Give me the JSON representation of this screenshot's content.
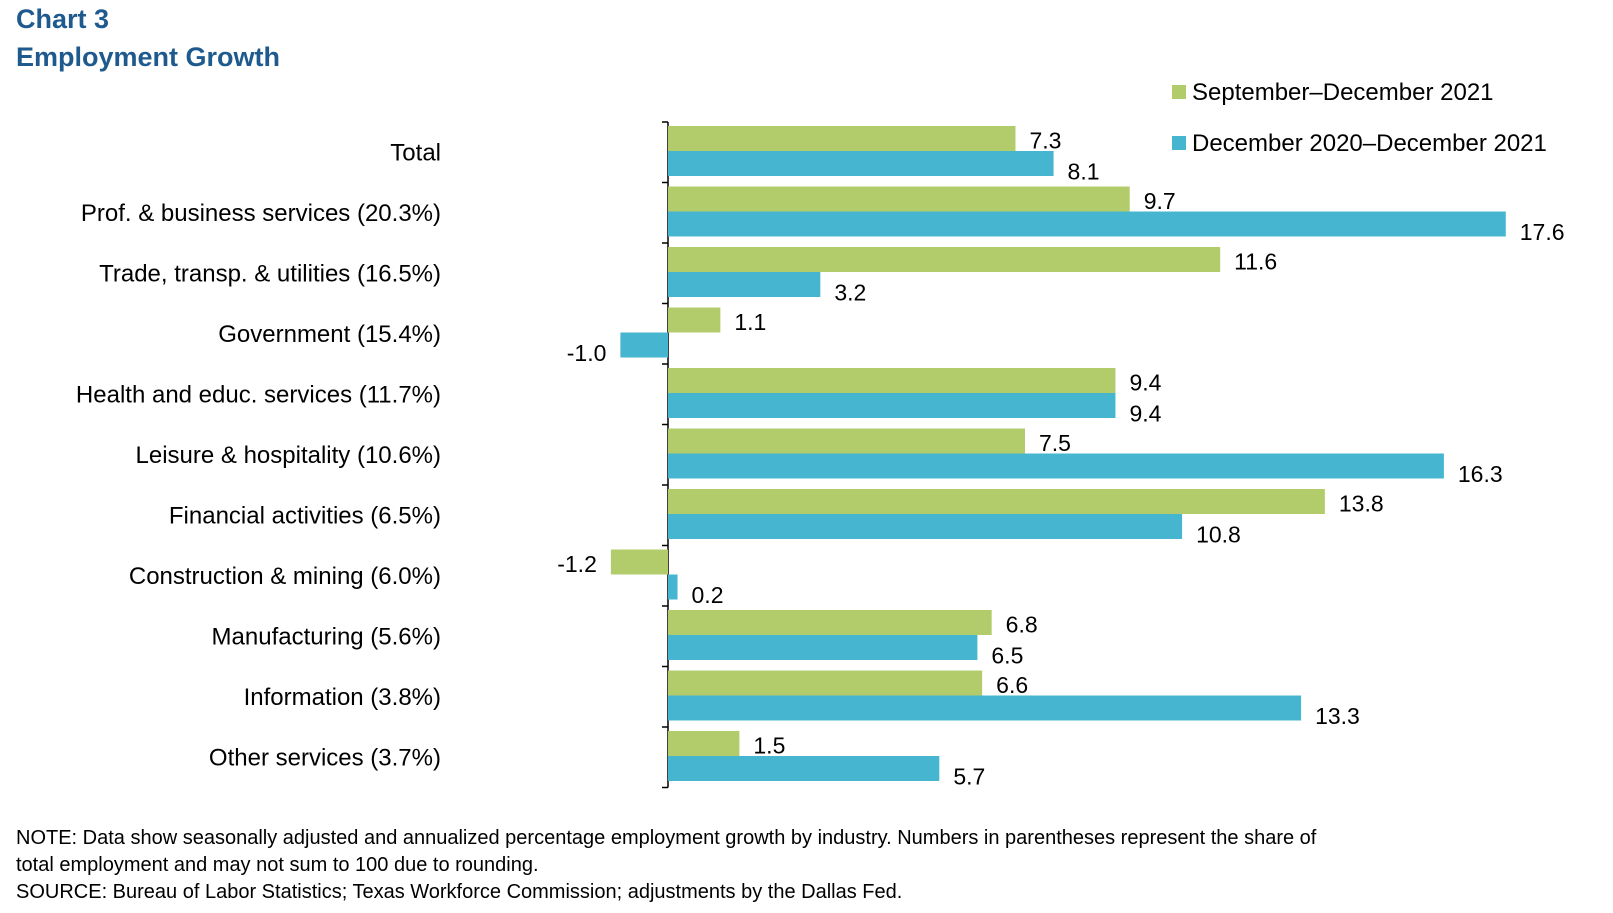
{
  "header": {
    "label": "Chart 3",
    "title": "Employment Growth"
  },
  "notes": {
    "note_line1": "NOTE: Data show seasonally adjusted and annualized percentage employment growth by industry. Numbers in parentheses represent the share of",
    "note_line2": "total employment and may not sum to 100 due to rounding.",
    "source": "SOURCE: Bureau of Labor Statistics; Texas Workforce Commission; adjustments by the Dallas Fed."
  },
  "chart_data": {
    "type": "bar",
    "orientation": "horizontal",
    "title": "Employment Growth",
    "categories": [
      "Total",
      "Prof. & business services (20.3%)",
      "Trade, transp. & utilities (16.5%)",
      "Government (15.4%)",
      "Health and educ. services (11.7%)",
      "Leisure & hospitality (10.6%)",
      "Financial activities (6.5%)",
      "Construction & mining (6.0%)",
      "Manufacturing (5.6%)",
      "Information (3.8%)",
      "Other services (3.7%)"
    ],
    "series": [
      {
        "name": "September–December 2021",
        "color": "#b3cc6b",
        "values": [
          7.3,
          9.7,
          11.6,
          1.1,
          9.4,
          7.5,
          13.8,
          -1.2,
          6.8,
          6.6,
          1.5
        ],
        "labels": [
          "7.3",
          "9.7",
          "11.6",
          "1.1",
          "9.4",
          "7.5",
          "13.8",
          "-1.2",
          "6.8",
          "6.6",
          "1.5"
        ]
      },
      {
        "name": "December 2020–December 2021",
        "color": "#45b5d0",
        "values": [
          8.1,
          17.6,
          3.2,
          -1.0,
          9.4,
          16.3,
          10.8,
          0.2,
          6.5,
          13.3,
          5.7
        ],
        "labels": [
          "8.1",
          "17.6",
          "3.2",
          "-1.0",
          "9.4",
          "16.3",
          "10.8",
          "0.2",
          "6.5",
          "13.3",
          "5.7"
        ]
      }
    ],
    "legend": "top-right",
    "grid": false
  }
}
